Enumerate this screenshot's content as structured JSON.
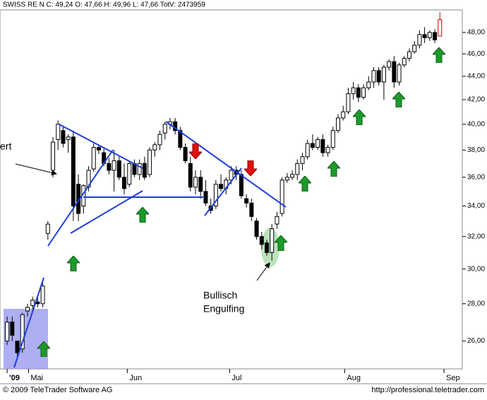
{
  "chart_data": {
    "type": "candlestick",
    "title": "SWISS RE N C: 49,24 O: 47,66 H: 49,96 L: 47,66 TotV: 2473959",
    "open": [
      26.0,
      27.0,
      26.0,
      25.6,
      27.6,
      27.9,
      28.1,
      28.0,
      32.2,
      36.5,
      38.8,
      39.5,
      38.8,
      39.0,
      35.5,
      34.0,
      35.3,
      36.6,
      38.2,
      37.8,
      37.0,
      36.5,
      37.2,
      36.0,
      35.5,
      37.0,
      36.2,
      37.0,
      36.2,
      38.0,
      38.4,
      39.3,
      40.0,
      40.2,
      39.5,
      38.2,
      37.0,
      35.3,
      36.0,
      35.0,
      34.0,
      34.0,
      35.5,
      35.2,
      35.8,
      36.5,
      36.2,
      34.5,
      34.2,
      33.0,
      32.0,
      31.6,
      31.0,
      32.8,
      33.5,
      35.8,
      36.0,
      36.2,
      37.0,
      37.5,
      38.5,
      38.2,
      38.8,
      37.8,
      38.2,
      39.5,
      40.5,
      41.0,
      42.5,
      43.0,
      42.2,
      43.0,
      43.5,
      44.5,
      43.5,
      44.8,
      45.3,
      43.5,
      45.0,
      45.6,
      46.2,
      46.8,
      47.8,
      47.5,
      48.0,
      47.66
    ],
    "high": [
      27.3,
      27.3,
      26.0,
      27.5,
      28.0,
      28.4,
      28.4,
      29.2,
      33.0,
      39.0,
      40.3,
      39.9,
      39.2,
      39.5,
      36.2,
      35.5,
      36.8,
      38.5,
      38.4,
      38.1,
      37.4,
      38.0,
      37.5,
      37.0,
      37.2,
      37.3,
      37.3,
      37.5,
      38.2,
      38.6,
      39.5,
      40.2,
      40.5,
      40.5,
      39.8,
      38.5,
      37.5,
      36.5,
      36.5,
      35.8,
      34.5,
      35.8,
      36.2,
      36.0,
      36.8,
      36.8,
      36.5,
      34.8,
      34.5,
      33.2,
      32.3,
      31.8,
      32.8,
      33.6,
      36.0,
      36.3,
      36.5,
      37.3,
      37.8,
      38.8,
      39.2,
      39.0,
      39.2,
      38.4,
      39.8,
      40.8,
      41.5,
      43.0,
      43.5,
      43.3,
      43.3,
      44.0,
      44.8,
      44.8,
      45.0,
      45.5,
      45.8,
      45.2,
      45.8,
      46.5,
      47.2,
      48.2,
      48.5,
      48.2,
      48.3,
      49.96
    ],
    "low": [
      25.8,
      26.0,
      25.2,
      25.4,
      27.3,
      27.7,
      27.8,
      27.8,
      31.8,
      36.0,
      38.0,
      38.2,
      37.8,
      33.0,
      33.0,
      33.5,
      35.0,
      36.4,
      37.7,
      36.8,
      36.2,
      35.0,
      35.8,
      34.8,
      35.3,
      36.0,
      35.8,
      35.8,
      36.0,
      37.5,
      38.0,
      38.8,
      39.6,
      39.2,
      38.0,
      37.0,
      35.0,
      34.8,
      34.5,
      34.0,
      33.5,
      33.8,
      35.0,
      34.8,
      35.5,
      35.8,
      34.5,
      33.9,
      33.0,
      31.8,
      31.2,
      30.8,
      30.5,
      32.5,
      33.3,
      35.6,
      35.8,
      35.8,
      36.5,
      37.3,
      38.0,
      38.0,
      37.5,
      37.5,
      38.0,
      39.3,
      40.3,
      40.8,
      42.0,
      41.8,
      42.0,
      42.8,
      43.0,
      43.2,
      42.0,
      44.5,
      43.0,
      43.2,
      44.8,
      45.3,
      46.0,
      46.5,
      47.0,
      47.2,
      47.0,
      47.66
    ],
    "close": [
      27.0,
      26.3,
      25.4,
      27.4,
      27.8,
      28.2,
      28.0,
      29.0,
      32.8,
      38.6,
      40.0,
      38.5,
      39.0,
      34.0,
      33.5,
      35.4,
      36.5,
      38.2,
      38.0,
      37.0,
      36.5,
      37.2,
      36.0,
      35.2,
      37.0,
      36.2,
      37.0,
      36.0,
      38.0,
      38.4,
      39.2,
      40.0,
      40.2,
      39.5,
      38.2,
      37.2,
      35.3,
      36.0,
      35.0,
      34.2,
      33.7,
      35.5,
      35.2,
      35.8,
      36.5,
      36.2,
      34.7,
      34.2,
      33.3,
      32.0,
      31.5,
      31.0,
      32.5,
      33.3,
      35.8,
      36.0,
      36.2,
      37.0,
      37.5,
      38.5,
      38.2,
      38.8,
      37.8,
      38.2,
      39.5,
      40.5,
      41.0,
      42.5,
      43.0,
      42.2,
      43.0,
      43.5,
      44.5,
      43.5,
      44.8,
      45.3,
      43.5,
      45.0,
      45.6,
      46.2,
      46.8,
      47.8,
      47.5,
      48.0,
      47.3,
      49.24
    ],
    "colors": {
      "up": "#ffffff",
      "down": "#000000",
      "last": "#cc0000",
      "outline": "#000000"
    },
    "log_scale": true,
    "ylim": [
      24.6,
      50.2
    ],
    "yticks": [
      {
        "value": 26,
        "label": "26,00"
      },
      {
        "value": 28,
        "label": "28,00"
      },
      {
        "value": 30,
        "label": "30,00"
      },
      {
        "value": 32,
        "label": "32,00"
      },
      {
        "value": 34,
        "label": "34,00"
      },
      {
        "value": 36,
        "label": "36,00"
      },
      {
        "value": 38,
        "label": "38,00"
      },
      {
        "value": 40,
        "label": "40,00"
      },
      {
        "value": 42,
        "label": "42,00"
      },
      {
        "value": 44,
        "label": "44,00"
      },
      {
        "value": 46,
        "label": "46,00"
      },
      {
        "value": 48,
        "label": "48,00"
      }
    ],
    "xlim": [
      -1.4,
      89.4
    ],
    "xticks": [
      {
        "value": 0,
        "label": "'09"
      },
      {
        "value": 4.2,
        "label": "Mai"
      },
      {
        "value": 23.6,
        "label": "Jun"
      },
      {
        "value": 43.7,
        "label": "Jul"
      },
      {
        "value": 66.3,
        "label": "Aug"
      },
      {
        "value": 85.8,
        "label": "Sep"
      }
    ],
    "annotations": [
      "ert",
      "Bullisch",
      "Engulfing"
    ],
    "footer_left": "© 2009 TeleTrader Software AG",
    "footer_right": "http://professional.teletrader.com"
  }
}
